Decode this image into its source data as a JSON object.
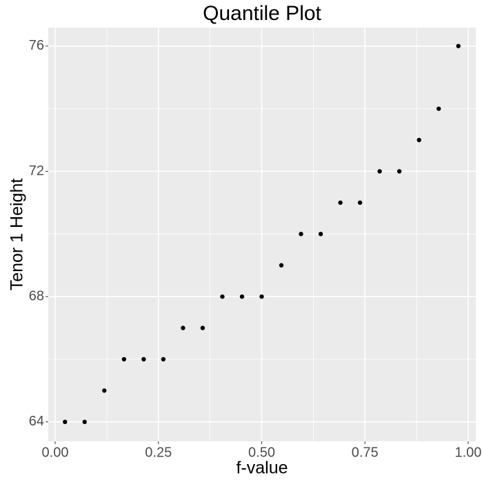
{
  "chart_data": {
    "type": "scatter",
    "title": "Quantile Plot",
    "x_label": "f-value",
    "y_label": "Tenor 1 Height",
    "x": [
      0.0238,
      0.0714,
      0.119,
      0.1667,
      0.2143,
      0.2619,
      0.3095,
      0.3571,
      0.4048,
      0.4524,
      0.5,
      0.5476,
      0.5952,
      0.6429,
      0.6905,
      0.7381,
      0.7857,
      0.8333,
      0.881,
      0.9286,
      0.9762
    ],
    "series": [
      {
        "color": "#000000",
        "values": [
          64,
          64,
          65,
          66,
          66,
          66,
          67,
          67,
          68,
          68,
          68,
          69,
          70,
          70,
          71,
          71,
          72,
          72,
          73,
          74,
          76
        ]
      }
    ],
    "xlim": [
      -0.0167,
      1.0184
    ],
    "ylim": [
      63.38,
      76.59
    ],
    "xticks": [
      {
        "value": 0,
        "label": "0.00"
      },
      {
        "value": 0.25,
        "label": "0.25"
      },
      {
        "value": 0.5,
        "label": "0.50"
      },
      {
        "value": 0.75,
        "label": "0.75"
      },
      {
        "value": 1,
        "label": "1.00"
      }
    ],
    "yticks": [
      64,
      68,
      72,
      76
    ],
    "x_minor_grid": [
      0.125,
      0.375,
      0.625,
      0.875
    ],
    "y_minor_grid": [
      66,
      70,
      74
    ],
    "grid": true
  }
}
